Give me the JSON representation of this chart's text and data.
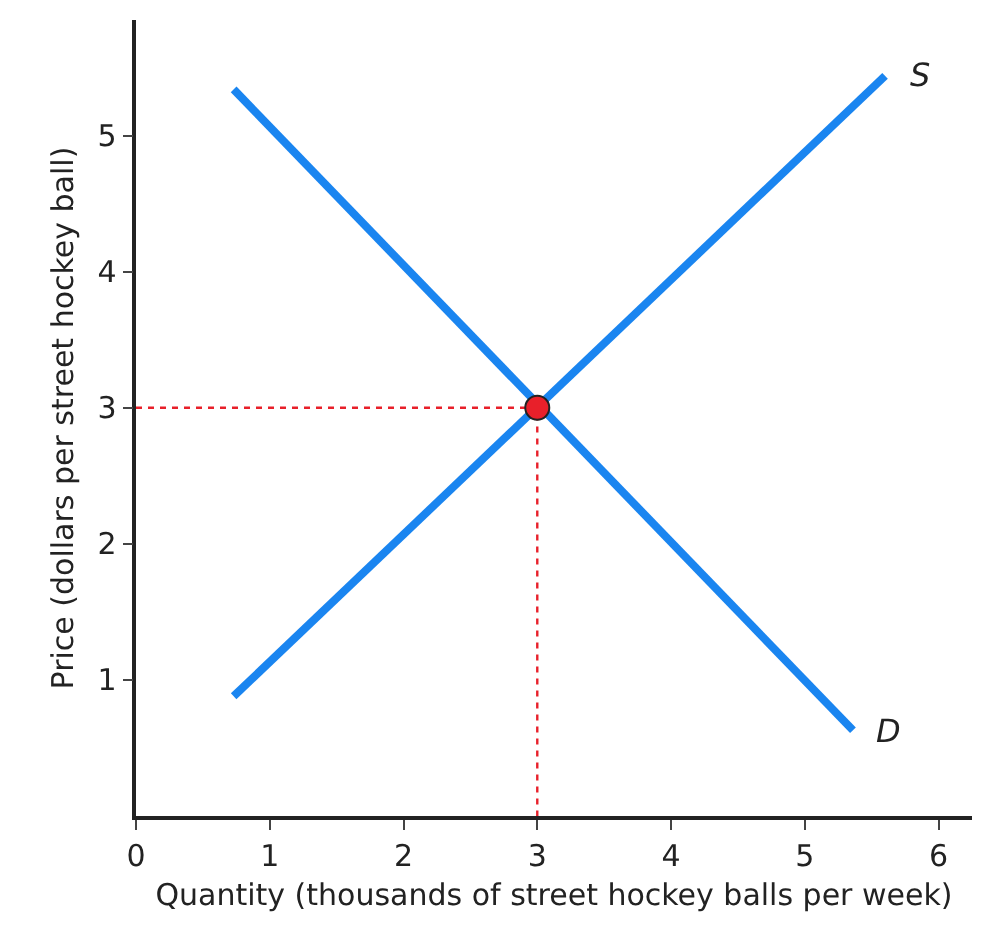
{
  "chart_data": {
    "type": "line",
    "xlabel": "Quantity (thousands of street hockey balls per week)",
    "ylabel": "Price (dollars per street hockey ball)",
    "series": [
      {
        "name": "D",
        "color": "#1a85f0",
        "x": [
          0.73,
          5.36
        ],
        "values": [
          5.34,
          0.63
        ]
      },
      {
        "name": "S",
        "color": "#1a85f0",
        "x": [
          0.73,
          5.6
        ],
        "values": [
          0.88,
          5.44
        ]
      },
      {
        "type": "line",
        "color": "#e8202a",
        "line_style": "dotted",
        "x": [
          0,
          3,
          3
        ],
        "values": [
          3,
          3,
          0
        ]
      },
      {
        "type": "scatter",
        "color": "#e8202a",
        "marker": "circle",
        "x": [
          3
        ],
        "values": [
          3
        ]
      }
    ],
    "xlim": [
      0,
      6.25
    ],
    "ylim": [
      0,
      5.85
    ],
    "xticks": [
      0,
      1,
      2,
      3,
      4,
      5,
      6
    ],
    "yticks": [
      1,
      2,
      3,
      4,
      5
    ],
    "grid": false,
    "legend": false,
    "marker": "none",
    "line_style": "solid"
  }
}
